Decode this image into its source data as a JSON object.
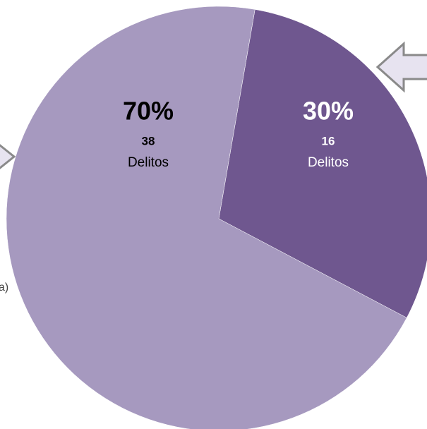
{
  "chart_data": {
    "type": "pie",
    "values": [
      30,
      70
    ],
    "value_labels": [
      "30%",
      "70%"
    ],
    "counts": [
      16,
      38
    ],
    "count_unit": "Delitos",
    "colors": [
      "#6f578f",
      "#a699bf"
    ],
    "label_colors": [
      "#ffffff",
      "#000000"
    ],
    "annotations": [
      "a)"
    ]
  }
}
